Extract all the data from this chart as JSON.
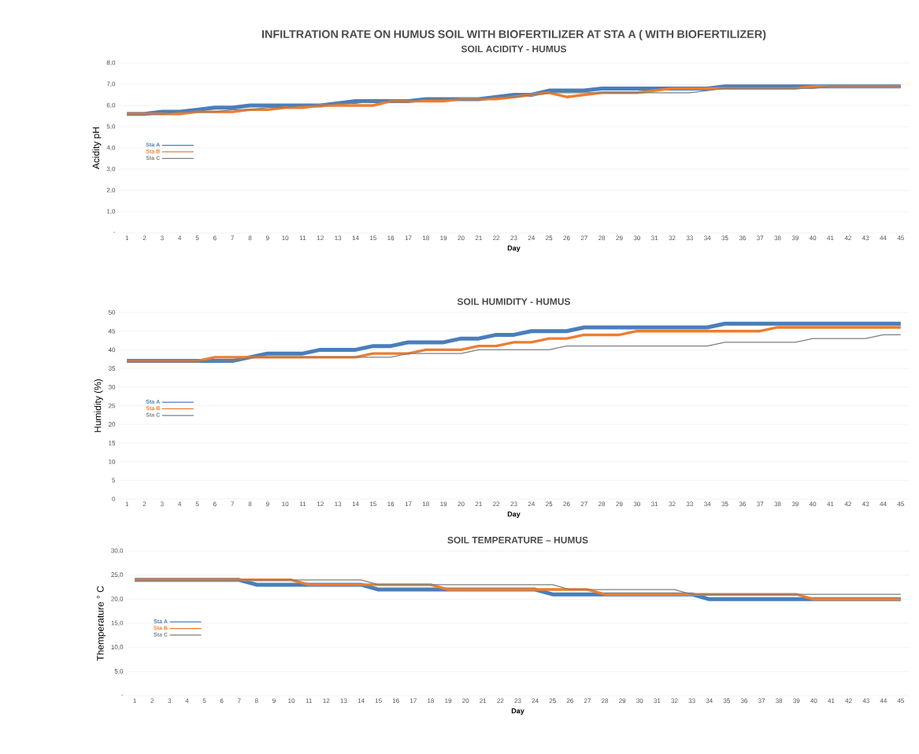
{
  "chart_data": [
    {
      "type": "line",
      "title": "INFILTRATION RATE ON HUMUS SOIL WITH BIOFERTILIZER AT STA A ( WITH BIOFERTILIZER)",
      "subtitle": "SOIL ACIDITY - HUMUS",
      "xlabel": "Day",
      "ylabel": "Acidity pH",
      "categories": [
        "1",
        "2",
        "3",
        "4",
        "5",
        "6",
        "7",
        "8",
        "9",
        "10",
        "11",
        "12",
        "13",
        "14",
        "15",
        "16",
        "17",
        "18",
        "19",
        "20",
        "21",
        "22",
        "23",
        "24",
        "25",
        "26",
        "27",
        "28",
        "29",
        "30",
        "31",
        "32",
        "33",
        "34",
        "35",
        "36",
        "37",
        "38",
        "39",
        "40",
        "41",
        "42",
        "43",
        "44",
        "45"
      ],
      "series": [
        {
          "name": "Sta A",
          "color": "#4a7ebb",
          "values": [
            5.6,
            5.6,
            5.7,
            5.7,
            5.8,
            5.9,
            5.9,
            6.0,
            6.0,
            6.0,
            6.0,
            6.0,
            6.1,
            6.2,
            6.2,
            6.2,
            6.2,
            6.3,
            6.3,
            6.3,
            6.3,
            6.4,
            6.5,
            6.5,
            6.7,
            6.7,
            6.7,
            6.8,
            6.8,
            6.8,
            6.8,
            6.8,
            6.8,
            6.8,
            6.9,
            6.9,
            6.9,
            6.9,
            6.9,
            6.9,
            6.9,
            6.9,
            6.9,
            6.9,
            6.9
          ]
        },
        {
          "name": "Sta B",
          "color": "#ed7d31",
          "values": [
            5.6,
            5.6,
            5.6,
            5.6,
            5.7,
            5.7,
            5.7,
            5.8,
            5.8,
            5.9,
            5.9,
            6.0,
            6.0,
            6.0,
            6.0,
            6.2,
            6.2,
            6.2,
            6.2,
            6.3,
            6.3,
            6.3,
            6.4,
            6.5,
            6.6,
            6.4,
            6.5,
            6.6,
            6.6,
            6.6,
            6.7,
            6.8,
            6.8,
            6.8,
            6.8,
            6.8,
            6.8,
            6.8,
            6.8,
            6.9,
            6.9,
            6.9,
            6.9,
            6.9,
            6.9
          ]
        },
        {
          "name": "Sta C",
          "color": "#7f7f7f",
          "values": [
            5.6,
            5.6,
            5.6,
            5.7,
            5.7,
            5.7,
            5.8,
            5.8,
            5.9,
            5.9,
            6.0,
            6.0,
            6.1,
            6.1,
            6.2,
            6.2,
            6.2,
            6.3,
            6.3,
            6.3,
            6.3,
            6.4,
            6.4,
            6.5,
            6.6,
            6.6,
            6.6,
            6.6,
            6.6,
            6.6,
            6.6,
            6.6,
            6.6,
            6.7,
            6.8,
            6.8,
            6.8,
            6.8,
            6.8,
            6.8,
            6.9,
            6.9,
            6.9,
            6.9,
            6.9
          ]
        }
      ],
      "ylim": [
        0,
        8
      ],
      "yticks": [
        {
          "value": 0,
          "label": "-"
        },
        {
          "value": 1,
          "label": "1,0"
        },
        {
          "value": 2,
          "label": "2,0"
        },
        {
          "value": 3,
          "label": "3,0"
        },
        {
          "value": 4,
          "label": "4,0"
        },
        {
          "value": 5,
          "label": "5,0"
        },
        {
          "value": 6,
          "label": "6,0"
        },
        {
          "value": 7,
          "label": "7,0"
        },
        {
          "value": 8,
          "label": "8,0"
        }
      ],
      "grid": "y",
      "legend": "left"
    },
    {
      "type": "line",
      "title": "SOIL HUMIDITY  - HUMUS",
      "xlabel": "Day",
      "ylabel": "Humidity (%)",
      "categories": [
        "1",
        "2",
        "3",
        "4",
        "5",
        "6",
        "7",
        "8",
        "9",
        "10",
        "11",
        "12",
        "13",
        "14",
        "15",
        "16",
        "17",
        "18",
        "19",
        "20",
        "21",
        "22",
        "23",
        "24",
        "25",
        "26",
        "27",
        "28",
        "29",
        "30",
        "31",
        "32",
        "33",
        "34",
        "35",
        "36",
        "37",
        "38",
        "39",
        "40",
        "41",
        "42",
        "43",
        "44",
        "45"
      ],
      "series": [
        {
          "name": "Sta A",
          "color": "#4a7ebb",
          "values": [
            37,
            37,
            37,
            37,
            37,
            37,
            37,
            38,
            39,
            39,
            39,
            40,
            40,
            40,
            41,
            41,
            42,
            42,
            42,
            43,
            43,
            44,
            44,
            45,
            45,
            45,
            46,
            46,
            46,
            46,
            46,
            46,
            46,
            46,
            47,
            47,
            47,
            47,
            47,
            47,
            47,
            47,
            47,
            47,
            47
          ]
        },
        {
          "name": "Sta B",
          "color": "#ed7d31",
          "values": [
            37,
            37,
            37,
            37,
            37,
            38,
            38,
            38,
            38,
            38,
            38,
            38,
            38,
            38,
            39,
            39,
            39,
            40,
            40,
            40,
            41,
            41,
            42,
            42,
            43,
            43,
            44,
            44,
            44,
            45,
            45,
            45,
            45,
            45,
            45,
            45,
            45,
            46,
            46,
            46,
            46,
            46,
            46,
            46,
            46
          ]
        },
        {
          "name": "Sta C",
          "color": "#7f7f7f",
          "values": [
            37,
            37,
            37,
            37,
            37,
            37,
            37,
            38,
            38,
            38,
            38,
            38,
            38,
            38,
            38,
            38,
            39,
            39,
            39,
            39,
            40,
            40,
            40,
            40,
            40,
            41,
            41,
            41,
            41,
            41,
            41,
            41,
            41,
            41,
            42,
            42,
            42,
            42,
            42,
            43,
            43,
            43,
            43,
            44,
            44
          ]
        }
      ],
      "ylim": [
        0,
        50
      ],
      "yticks": [
        0,
        5,
        10,
        15,
        20,
        25,
        30,
        35,
        40,
        45,
        50
      ],
      "grid": "y",
      "legend": "left"
    },
    {
      "type": "line",
      "title": "SOIL TEMPERATURE – HUMUS",
      "xlabel": "Day",
      "ylabel": "Themperature ° C",
      "categories": [
        "1",
        "2",
        "3",
        "4",
        "5",
        "6",
        "7",
        "8",
        "9",
        "10",
        "11",
        "12",
        "13",
        "14",
        "15",
        "16",
        "17",
        "18",
        "19",
        "20",
        "21",
        "22",
        "23",
        "24",
        "25",
        "26",
        "27",
        "28",
        "29",
        "30",
        "31",
        "32",
        "33",
        "34",
        "35",
        "36",
        "37",
        "38",
        "39",
        "40",
        "41",
        "42",
        "43",
        "44",
        "45"
      ],
      "series": [
        {
          "name": "Sta A",
          "color": "#4a7ebb",
          "values": [
            24,
            24,
            24,
            24,
            24,
            24,
            24,
            23,
            23,
            23,
            23,
            23,
            23,
            23,
            22,
            22,
            22,
            22,
            22,
            22,
            22,
            22,
            22,
            22,
            21,
            21,
            21,
            21,
            21,
            21,
            21,
            21,
            21,
            20,
            20,
            20,
            20,
            20,
            20,
            20,
            20,
            20,
            20,
            20,
            20
          ]
        },
        {
          "name": "Sta B",
          "color": "#ed7d31",
          "values": [
            24,
            24,
            24,
            24,
            24,
            24,
            24,
            24,
            24,
            24,
            23,
            23,
            23,
            23,
            23,
            23,
            23,
            23,
            22,
            22,
            22,
            22,
            22,
            22,
            22,
            22,
            22,
            21,
            21,
            21,
            21,
            21,
            21,
            21,
            21,
            21,
            21,
            21,
            21,
            20,
            20,
            20,
            20,
            20,
            20
          ]
        },
        {
          "name": "Sta C",
          "color": "#7f7f7f",
          "values": [
            24,
            24,
            24,
            24,
            24,
            24,
            24,
            24,
            24,
            24,
            24,
            24,
            24,
            24,
            23,
            23,
            23,
            23,
            23,
            23,
            23,
            23,
            23,
            23,
            23,
            22,
            22,
            22,
            22,
            22,
            22,
            22,
            21,
            21,
            21,
            21,
            21,
            21,
            21,
            21,
            21,
            21,
            21,
            21,
            21
          ]
        }
      ],
      "ylim": [
        0,
        30
      ],
      "yticks": [
        {
          "value": 0,
          "label": "-"
        },
        {
          "value": 5,
          "label": "5,0"
        },
        {
          "value": 10,
          "label": "10,0"
        },
        {
          "value": 15,
          "label": "15,0"
        },
        {
          "value": 20,
          "label": "20,0"
        },
        {
          "value": 25,
          "label": "25,0"
        },
        {
          "value": 30,
          "label": "30,0"
        }
      ],
      "grid": "y",
      "legend": "left"
    }
  ]
}
